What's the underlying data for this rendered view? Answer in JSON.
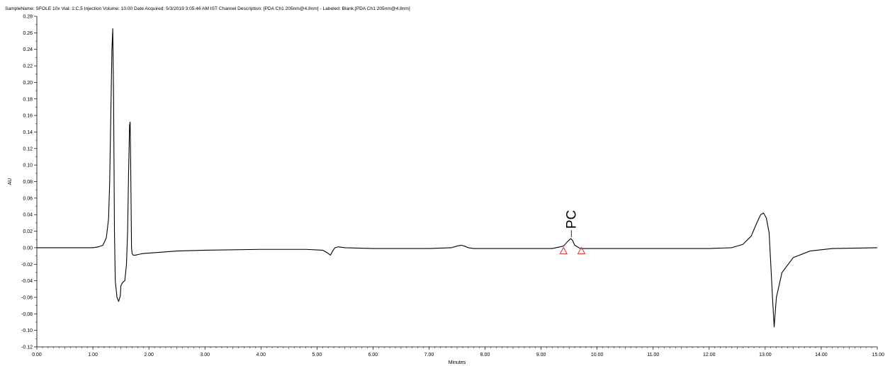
{
  "chart_data": {
    "type": "line",
    "title": "SampleName: SFOLE 10x Vial: 1:C,5 Injection Volume: 10.00 Date Acquired: 5/3/2019 3:05:46 AM IST Channel Description: [PDA Ch1 205nm@4.8nm] - Labeled: Blank,[PDA Ch1 205nm@4.8nm]",
    "xlabel": "Minutes",
    "ylabel": "AU",
    "xlim": [
      0,
      15
    ],
    "ylim": [
      -0.12,
      0.28
    ],
    "x_ticks": [
      "0.00",
      "1.00",
      "2.00",
      "3.00",
      "4.00",
      "5.00",
      "6.00",
      "7.00",
      "8.00",
      "9.00",
      "10.00",
      "11.00",
      "12.00",
      "13.00",
      "14.00",
      "15.00"
    ],
    "y_ticks": [
      "0.28",
      "0.26",
      "0.24",
      "0.22",
      "0.20",
      "0.18",
      "0.16",
      "0.14",
      "0.12",
      "0.10",
      "0.08",
      "0.06",
      "0.04",
      "0.02",
      "0.00",
      "-0.02",
      "-0.04",
      "-0.06",
      "-0.08",
      "-0.10",
      "-0.12"
    ],
    "grid": false,
    "colors": {
      "trace": "#000000",
      "baseline_marker": "#e03030"
    },
    "series": [
      {
        "x": [
          0,
          1.0,
          1.1,
          1.18,
          1.24,
          1.28,
          1.3,
          1.32,
          1.34,
          1.355,
          1.37,
          1.385,
          1.4,
          1.43,
          1.46,
          1.49,
          1.5,
          1.53,
          1.57,
          1.6,
          1.62,
          1.64,
          1.655,
          1.665,
          1.675,
          1.69,
          1.7,
          1.72,
          1.76,
          1.82,
          1.9,
          2.1,
          2.5,
          3.0,
          4.0,
          4.8,
          5.1,
          5.18,
          5.24,
          5.28,
          5.32,
          5.38,
          5.5,
          6.0,
          7.0,
          7.4,
          7.5,
          7.57,
          7.63,
          7.7,
          7.8,
          8.5,
          9.2,
          9.4,
          9.48,
          9.53,
          9.56,
          9.6,
          9.7,
          10.0,
          11.0,
          12.0,
          12.4,
          12.6,
          12.75,
          12.85,
          12.92,
          12.97,
          13.02,
          13.07,
          13.1,
          13.13,
          13.16,
          13.2,
          13.3,
          13.5,
          13.8,
          14.2,
          15.0
        ],
        "y": [
          0.0,
          0.0,
          0.001,
          0.003,
          0.012,
          0.035,
          0.08,
          0.16,
          0.24,
          0.265,
          0.18,
          0.02,
          -0.04,
          -0.06,
          -0.065,
          -0.058,
          -0.046,
          -0.042,
          -0.04,
          -0.02,
          0.02,
          0.1,
          0.148,
          0.152,
          0.1,
          0.0,
          -0.007,
          -0.009,
          -0.009,
          -0.008,
          -0.007,
          -0.006,
          -0.004,
          -0.003,
          -0.002,
          -0.002,
          -0.003,
          -0.006,
          -0.009,
          -0.004,
          0.0,
          0.001,
          0.0,
          -0.001,
          -0.001,
          0.0,
          0.002,
          0.003,
          0.002,
          0.0,
          -0.001,
          -0.001,
          -0.001,
          0.002,
          0.008,
          0.011,
          0.009,
          0.003,
          -0.001,
          -0.001,
          -0.001,
          -0.001,
          0.0,
          0.004,
          0.014,
          0.03,
          0.04,
          0.042,
          0.036,
          0.018,
          -0.02,
          -0.06,
          -0.096,
          -0.06,
          -0.03,
          -0.012,
          -0.004,
          -0.001,
          0.0
        ]
      }
    ],
    "annotations": [
      {
        "text": "PC",
        "x": 9.54,
        "y": 0.011
      }
    ],
    "baseline_markers": [
      {
        "x": 9.4,
        "y": -0.004
      },
      {
        "x": 9.72,
        "y": -0.004
      }
    ]
  }
}
